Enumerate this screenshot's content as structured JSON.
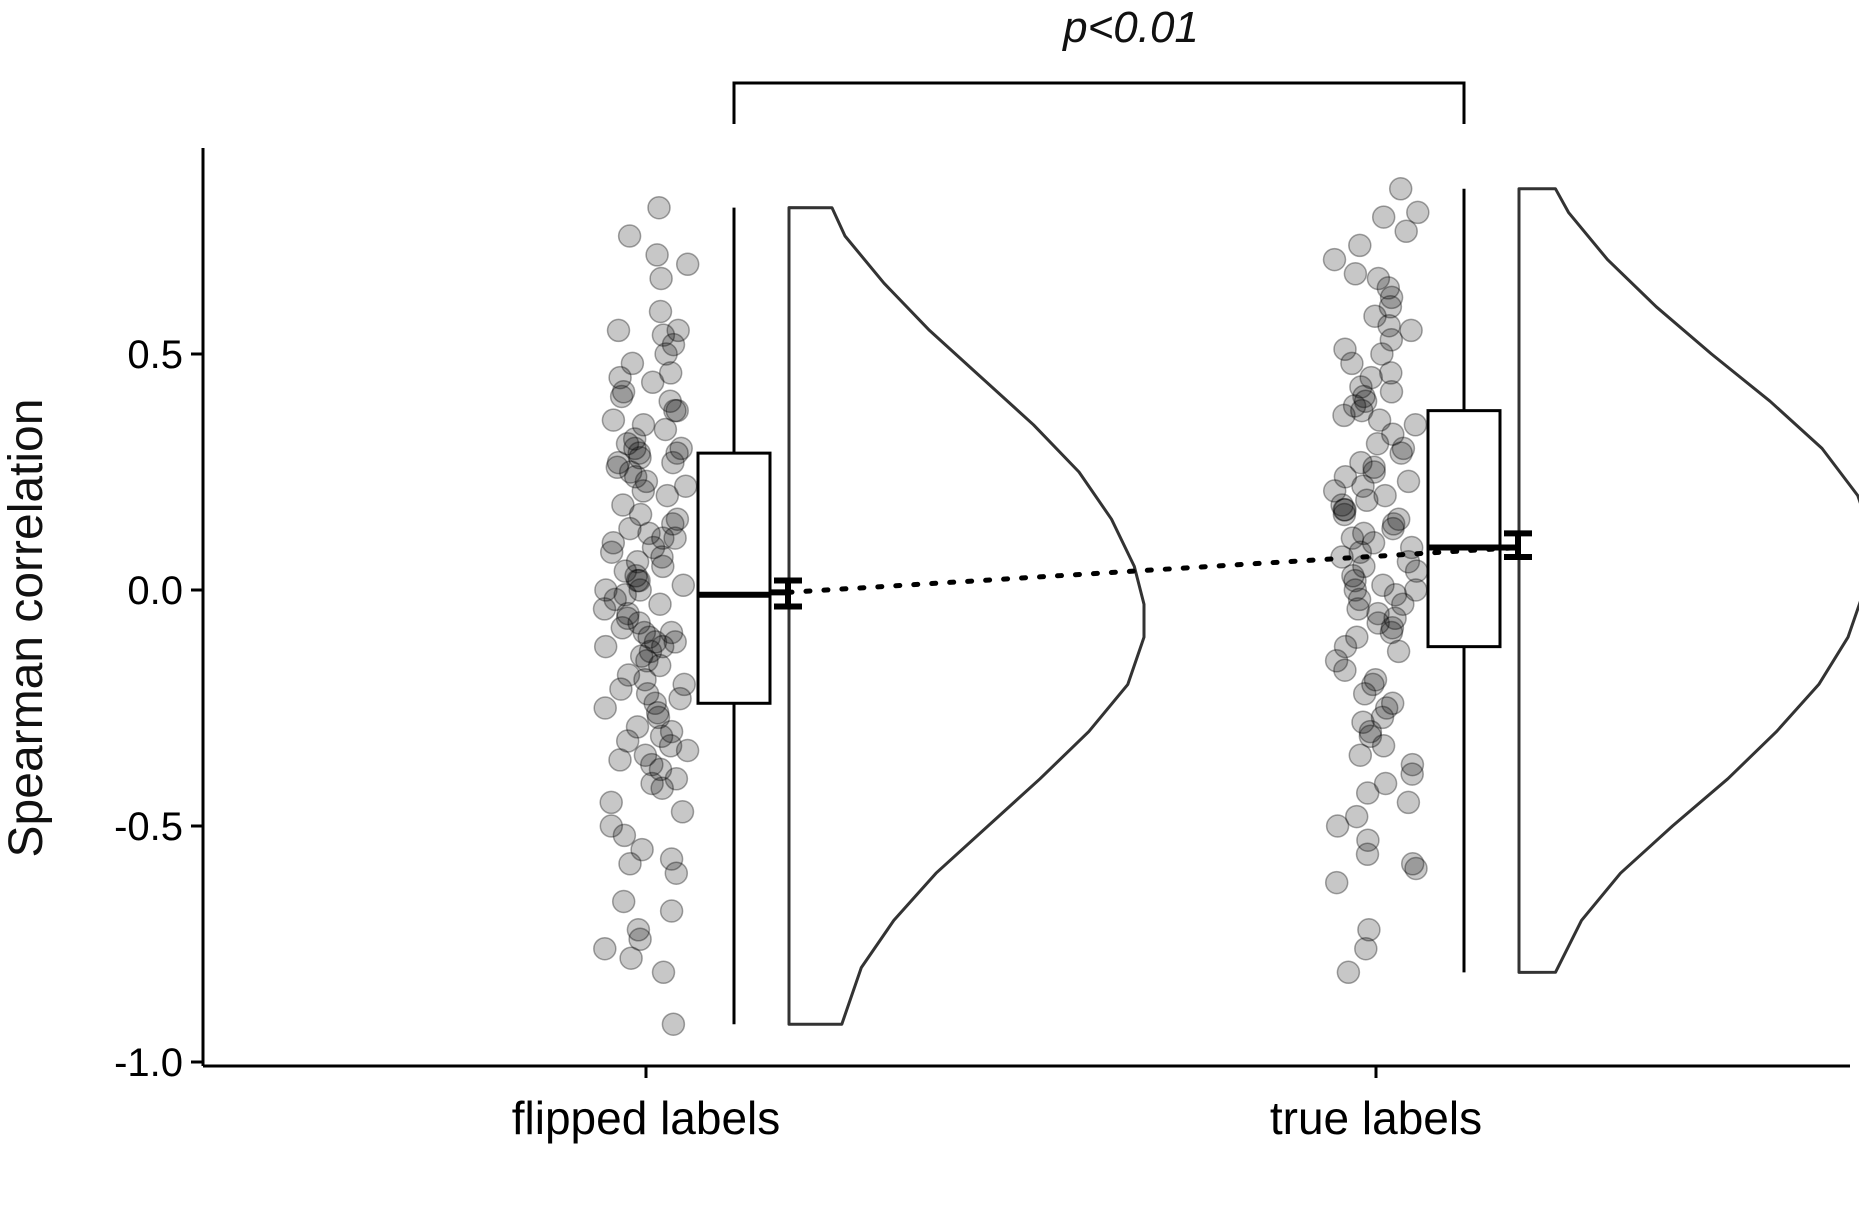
{
  "chart_data": {
    "type": "raincloud",
    "ylabel": "Spearman correlation",
    "xlabel": "",
    "ylim": [
      -1.0,
      0.9
    ],
    "yticks": [
      -1.0,
      -0.5,
      0.0,
      0.5
    ],
    "ytick_labels": [
      "-1.0",
      "-0.5",
      "0.0",
      "0.5"
    ],
    "grid": false,
    "categories": [
      "flipped labels",
      "true labels"
    ],
    "significance": {
      "label": "p<0.01",
      "between": [
        "flipped labels",
        "true labels"
      ]
    },
    "groups": [
      {
        "name": "flipped labels",
        "box": {
          "whisker_low": -0.92,
          "q1": -0.24,
          "median": -0.01,
          "q3": 0.29,
          "whisker_high": 0.81
        },
        "mean": -0.005,
        "ci": [
          -0.035,
          0.02
        ],
        "density": [
          [
            -0.92,
            0.07
          ],
          [
            -0.8,
            0.13
          ],
          [
            -0.7,
            0.23
          ],
          [
            -0.6,
            0.36
          ],
          [
            -0.5,
            0.52
          ],
          [
            -0.4,
            0.68
          ],
          [
            -0.3,
            0.83
          ],
          [
            -0.2,
            0.95
          ],
          [
            -0.1,
            1.0
          ],
          [
            -0.03,
            1.0
          ],
          [
            0.05,
            0.97
          ],
          [
            0.15,
            0.9
          ],
          [
            0.25,
            0.8
          ],
          [
            0.35,
            0.66
          ],
          [
            0.45,
            0.5
          ],
          [
            0.55,
            0.34
          ],
          [
            0.65,
            0.2
          ],
          [
            0.75,
            0.08
          ],
          [
            0.81,
            0.04
          ]
        ],
        "points": [
          0.81,
          0.75,
          0.71,
          0.69,
          0.66,
          0.59,
          0.55,
          0.55,
          0.54,
          0.52,
          0.5,
          0.48,
          0.46,
          0.45,
          0.44,
          0.42,
          0.41,
          0.4,
          0.38,
          0.38,
          0.36,
          0.35,
          0.34,
          0.32,
          0.31,
          0.3,
          0.3,
          0.29,
          0.29,
          0.28,
          0.27,
          0.27,
          0.26,
          0.25,
          0.24,
          0.23,
          0.22,
          0.21,
          0.2,
          0.18,
          0.16,
          0.15,
          0.14,
          0.13,
          0.12,
          0.11,
          0.11,
          0.1,
          0.09,
          0.08,
          0.07,
          0.06,
          0.05,
          0.04,
          0.03,
          0.02,
          0.02,
          0.01,
          0.0,
          0.0,
          -0.01,
          -0.02,
          -0.03,
          -0.04,
          -0.05,
          -0.06,
          -0.07,
          -0.08,
          -0.09,
          -0.09,
          -0.1,
          -0.11,
          -0.11,
          -0.12,
          -0.12,
          -0.13,
          -0.14,
          -0.15,
          -0.16,
          -0.18,
          -0.19,
          -0.2,
          -0.21,
          -0.22,
          -0.23,
          -0.24,
          -0.25,
          -0.26,
          -0.27,
          -0.29,
          -0.3,
          -0.31,
          -0.32,
          -0.33,
          -0.34,
          -0.35,
          -0.36,
          -0.37,
          -0.38,
          -0.4,
          -0.41,
          -0.42,
          -0.45,
          -0.47,
          -0.5,
          -0.52,
          -0.55,
          -0.57,
          -0.58,
          -0.6,
          -0.66,
          -0.68,
          -0.72,
          -0.74,
          -0.76,
          -0.78,
          -0.81,
          -0.92
        ]
      },
      {
        "name": "true labels",
        "box": {
          "whisker_low": -0.81,
          "q1": -0.12,
          "median": 0.09,
          "q3": 0.38,
          "whisker_high": 0.85
        },
        "mean": 0.09,
        "ci": [
          0.07,
          0.12
        ],
        "density": [
          [
            -0.81,
            0.02
          ],
          [
            -0.7,
            0.1
          ],
          [
            -0.6,
            0.22
          ],
          [
            -0.5,
            0.38
          ],
          [
            -0.4,
            0.55
          ],
          [
            -0.3,
            0.7
          ],
          [
            -0.2,
            0.83
          ],
          [
            -0.1,
            0.92
          ],
          [
            0.0,
            0.97
          ],
          [
            0.1,
            1.0
          ],
          [
            0.2,
            0.95
          ],
          [
            0.3,
            0.84
          ],
          [
            0.4,
            0.68
          ],
          [
            0.5,
            0.5
          ],
          [
            0.6,
            0.33
          ],
          [
            0.7,
            0.18
          ],
          [
            0.8,
            0.06
          ],
          [
            0.85,
            0.02
          ]
        ],
        "points": [
          0.85,
          0.8,
          0.79,
          0.76,
          0.73,
          0.7,
          0.67,
          0.66,
          0.64,
          0.62,
          0.6,
          0.58,
          0.56,
          0.55,
          0.53,
          0.51,
          0.5,
          0.48,
          0.46,
          0.45,
          0.43,
          0.42,
          0.41,
          0.4,
          0.39,
          0.38,
          0.37,
          0.36,
          0.35,
          0.33,
          0.31,
          0.3,
          0.29,
          0.27,
          0.26,
          0.25,
          0.24,
          0.23,
          0.22,
          0.21,
          0.2,
          0.19,
          0.18,
          0.17,
          0.17,
          0.16,
          0.15,
          0.14,
          0.13,
          0.12,
          0.11,
          0.1,
          0.09,
          0.08,
          0.07,
          0.06,
          0.05,
          0.04,
          0.03,
          0.02,
          0.01,
          0.0,
          0.0,
          -0.01,
          -0.02,
          -0.03,
          -0.04,
          -0.05,
          -0.06,
          -0.07,
          -0.08,
          -0.09,
          -0.1,
          -0.12,
          -0.13,
          -0.15,
          -0.17,
          -0.19,
          -0.2,
          -0.22,
          -0.24,
          -0.25,
          -0.27,
          -0.28,
          -0.3,
          -0.31,
          -0.33,
          -0.35,
          -0.37,
          -0.39,
          -0.41,
          -0.43,
          -0.45,
          -0.48,
          -0.5,
          -0.53,
          -0.56,
          -0.58,
          -0.59,
          -0.62,
          -0.72,
          -0.76,
          -0.81
        ]
      }
    ]
  }
}
